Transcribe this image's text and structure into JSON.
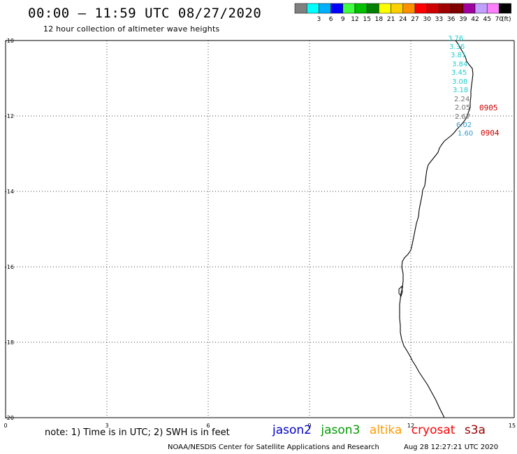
{
  "header": {
    "title": "00:00 – 11:59 UTC 08/27/2020",
    "subtitle": "12 hour collection of altimeter wave heights"
  },
  "legend": {
    "unit": "(ft)",
    "items": [
      {
        "label": "",
        "color": "#808080"
      },
      {
        "label": "3",
        "color": "#00ffff"
      },
      {
        "label": "6",
        "color": "#00b0ff"
      },
      {
        "label": "9",
        "color": "#0000ff"
      },
      {
        "label": "12",
        "color": "#40ff40"
      },
      {
        "label": "15",
        "color": "#00c000"
      },
      {
        "label": "18",
        "color": "#008000"
      },
      {
        "label": "21",
        "color": "#ffff00"
      },
      {
        "label": "24",
        "color": "#ffd000"
      },
      {
        "label": "27",
        "color": "#ff9000"
      },
      {
        "label": "30",
        "color": "#ff0000"
      },
      {
        "label": "33",
        "color": "#d00000"
      },
      {
        "label": "36",
        "color": "#a00000"
      },
      {
        "label": "39",
        "color": "#800000"
      },
      {
        "label": "42",
        "color": "#a000a0"
      },
      {
        "label": "45",
        "color": "#c0a0ff"
      },
      {
        "label": "70",
        "color": "#ff80ff"
      },
      {
        "label": "",
        "color": "#000000"
      }
    ]
  },
  "axes": {
    "x_ticks": [
      "0",
      "3",
      "6",
      "9",
      "12",
      "15"
    ],
    "y_ticks": [
      "-10",
      "-12",
      "-14",
      "-16",
      "-18",
      "-20"
    ]
  },
  "observations": [
    {
      "label": "3.76",
      "color": "#22cccc"
    },
    {
      "label": "3.36",
      "color": "#22cccc"
    },
    {
      "label": "3.81",
      "color": "#22cccc"
    },
    {
      "label": "3.84",
      "color": "#22cccc"
    },
    {
      "label": "3.45",
      "color": "#22cccc"
    },
    {
      "label": "3.08",
      "color": "#22cccc"
    },
    {
      "label": "3.18",
      "color": "#22cccc"
    },
    {
      "label": "2.24",
      "color": "#707070"
    },
    {
      "label": "2.05",
      "color": "#707070"
    },
    {
      "label": "2.67",
      "color": "#707070"
    },
    {
      "label": "6.02",
      "color": "#3399cc"
    },
    {
      "label": "1.60",
      "color": "#3399cc"
    }
  ],
  "time_labels": [
    {
      "label": "0905",
      "color": "#cc0000"
    },
    {
      "label": "0904",
      "color": "#cc0000"
    }
  ],
  "footer": {
    "note": "note: 1) Time is in UTC; 2) SWH is in feet",
    "credit": "NOAA/NESDIS Center for Satellite Applications and Research",
    "timestamp": "Aug 28 12:27:21 UTC 2020",
    "satellites": [
      {
        "name": "jason2",
        "color": "#0000cc"
      },
      {
        "name": "jason3",
        "color": "#009900"
      },
      {
        "name": "altika",
        "color": "#ff9900"
      },
      {
        "name": "cryosat",
        "color": "#ff0000"
      },
      {
        "name": "s3a",
        "color": "#990000"
      }
    ]
  }
}
